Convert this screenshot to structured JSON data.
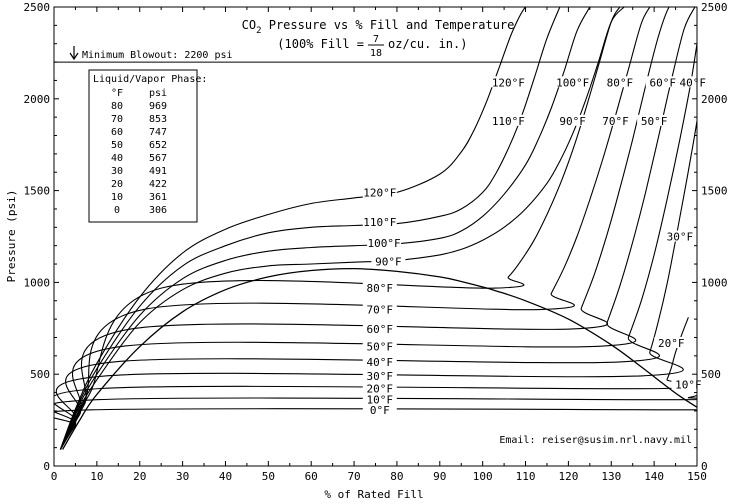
{
  "chart_data": {
    "type": "line",
    "title": "CO2 Pressure vs % Fill and Temperature",
    "title_parts": {
      "lead": "CO",
      "subscript": "2",
      "rest": " Pressure vs % Fill and Temperature"
    },
    "subtitle_parts": {
      "lead": "(100% Fill = ",
      "fraction_numerator": "7",
      "fraction_denominator": "18",
      "tail": " oz/cu. in.)"
    },
    "xlabel": "% of Rated Fill",
    "ylabel": "Pressure (psi)",
    "xlim": [
      0,
      150
    ],
    "ylim": [
      0,
      2500
    ],
    "x_ticks": [
      "0",
      "10",
      "20",
      "30",
      "40",
      "50",
      "60",
      "70",
      "80",
      "90",
      "100",
      "110",
      "120",
      "130",
      "140",
      "150"
    ],
    "y_ticks": [
      "0",
      "500",
      "1000",
      "1500",
      "2000",
      "2500"
    ],
    "y_ticks_right": [
      "0",
      "500",
      "1000",
      "1500",
      "2000",
      "2500"
    ],
    "grid": false,
    "reference_line": {
      "label": "Minimum Blowout: 2200 psi",
      "y": 2200
    },
    "table": {
      "title": "Liquid/Vapor Phase:",
      "columns": [
        "°F",
        "psi"
      ],
      "rows": [
        [
          "80",
          "969"
        ],
        [
          "70",
          "853"
        ],
        [
          "60",
          "747"
        ],
        [
          "50",
          "652"
        ],
        [
          "40",
          "567"
        ],
        [
          "30",
          "491"
        ],
        [
          "20",
          "422"
        ],
        [
          "10",
          "361"
        ],
        [
          "0",
          "306"
        ]
      ]
    },
    "saturation_curve": {
      "x": [
        2,
        6,
        10,
        20,
        30,
        40,
        50,
        60,
        70,
        80,
        90,
        95,
        100,
        103,
        110,
        120,
        130,
        137,
        142,
        146,
        150
      ],
      "y": [
        90,
        250,
        390,
        650,
        840,
        960,
        1030,
        1065,
        1075,
        1060,
        1030,
        1005,
        975,
        955,
        900,
        800,
        660,
        540,
        450,
        380,
        320
      ]
    },
    "series": [
      {
        "name": "0°F",
        "label": "0°F",
        "flat_psi": 306,
        "x": [
          1.5,
          5,
          9,
          150
        ],
        "y": [
          90,
          220,
          306,
          306
        ]
      },
      {
        "name": "10°F",
        "label": "10°F",
        "flat_psi": 361,
        "x": [
          1.5,
          5,
          10,
          146,
          148,
          150
        ],
        "y": [
          90,
          230,
          361,
          361,
          372,
          384
        ]
      },
      {
        "name": "20°F",
        "label": "20°F",
        "flat_psi": 422,
        "x": [
          1.5,
          5,
          11,
          142,
          143,
          144,
          145,
          146.5,
          148
        ],
        "y": [
          90,
          240,
          422,
          422,
          470,
          535,
          620,
          720,
          810
        ]
      },
      {
        "name": "30°F",
        "label": "30°F",
        "flat_psi": 491,
        "x": [
          1.5,
          5,
          12,
          137,
          139,
          141,
          143,
          145,
          147,
          149,
          150
        ],
        "y": [
          90,
          250,
          491,
          491,
          620,
          790,
          990,
          1230,
          1480,
          1740,
          1880
        ]
      },
      {
        "name": "40°F",
        "label": "40°F",
        "flat_psi": 567,
        "x": [
          1.5,
          6,
          14,
          132,
          134,
          137,
          140,
          143,
          146,
          148.5,
          150
        ],
        "y": [
          90,
          280,
          567,
          567,
          700,
          900,
          1150,
          1450,
          1780,
          2080,
          2300
        ]
      },
      {
        "name": "50°F",
        "label": "50°F",
        "flat_psi": 652,
        "x": [
          1.5,
          6,
          16,
          127,
          129,
          132,
          135,
          138,
          141,
          144,
          147,
          149.5
        ],
        "y": [
          90,
          300,
          652,
          652,
          780,
          980,
          1220,
          1490,
          1790,
          2100,
          2380,
          2500
        ]
      },
      {
        "name": "60°F",
        "label": "60°F",
        "flat_psi": 747,
        "x": [
          1.5,
          7,
          18,
          121,
          123,
          126,
          129,
          132,
          135,
          138,
          141,
          143.5,
          145
        ],
        "y": [
          90,
          330,
          747,
          747,
          860,
          1040,
          1260,
          1510,
          1780,
          2070,
          2340,
          2500,
          2500
        ]
      },
      {
        "name": "70°F",
        "label": "70°F",
        "flat_psi": 853,
        "x": [
          1.5,
          7,
          21,
          114,
          116,
          119,
          122,
          125,
          128,
          131,
          134,
          137,
          139
        ],
        "y": [
          90,
          350,
          853,
          853,
          940,
          1080,
          1250,
          1450,
          1670,
          1910,
          2160,
          2410,
          2500
        ]
      },
      {
        "name": "80°F",
        "label": "80°F",
        "flat_psi": 969,
        "x": [
          1.5,
          8,
          25,
          103,
          106,
          109,
          112,
          115,
          118,
          121,
          124,
          127,
          130,
          132
        ],
        "y": [
          90,
          380,
          969,
          969,
          1030,
          1120,
          1230,
          1370,
          1530,
          1720,
          1940,
          2180,
          2420,
          2500
        ]
      },
      {
        "name": "90°F",
        "label": "90°F",
        "x": [
          1.5,
          5,
          10,
          20,
          30,
          40,
          50,
          60,
          70,
          80,
          90,
          95,
          100,
          105,
          110,
          115,
          118,
          121,
          124,
          127,
          130,
          133
        ],
        "y": [
          90,
          280,
          470,
          780,
          960,
          1050,
          1090,
          1100,
          1110,
          1120,
          1150,
          1180,
          1230,
          1300,
          1400,
          1540,
          1660,
          1810,
          1990,
          2200,
          2420,
          2500
        ]
      },
      {
        "name": "100°F",
        "label": "100°F",
        "x": [
          1.5,
          5,
          10,
          20,
          30,
          40,
          50,
          60,
          70,
          80,
          90,
          95,
          100,
          105,
          110,
          113,
          116,
          119,
          122,
          125
        ],
        "y": [
          90,
          290,
          500,
          820,
          1020,
          1120,
          1170,
          1190,
          1200,
          1210,
          1240,
          1280,
          1360,
          1480,
          1640,
          1780,
          1950,
          2150,
          2370,
          2500
        ]
      },
      {
        "name": "110°F",
        "label": "110°F",
        "x": [
          1.5,
          5,
          10,
          20,
          30,
          40,
          50,
          60,
          70,
          80,
          90,
          95,
          100,
          103,
          106,
          109,
          112,
          115,
          118
        ],
        "y": [
          90,
          300,
          530,
          870,
          1090,
          1200,
          1270,
          1300,
          1310,
          1320,
          1360,
          1400,
          1490,
          1590,
          1730,
          1900,
          2110,
          2330,
          2500
        ]
      },
      {
        "name": "120°F",
        "label": "120°F",
        "x": [
          1.5,
          5,
          10,
          20,
          30,
          40,
          50,
          60,
          70,
          80,
          90,
          95,
          98,
          101,
          104,
          107,
          110,
          112
        ],
        "y": [
          90,
          310,
          560,
          920,
          1160,
          1290,
          1370,
          1430,
          1460,
          1490,
          1590,
          1710,
          1830,
          1990,
          2180,
          2370,
          2500,
          2500
        ]
      }
    ],
    "email_annotation": "Email: reiser@susim.nrl.navy.mil"
  }
}
